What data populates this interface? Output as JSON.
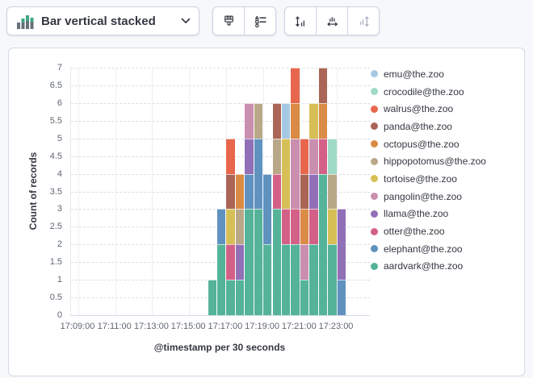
{
  "toolbar": {
    "chart_type_label": "Bar vertical stacked",
    "chart_type_icon": "bar-vertical-stacked-icon",
    "dropdown_icon": "chevron-down-icon",
    "buttons": [
      {
        "name": "styling",
        "icon": "brush-icon",
        "enabled": true
      },
      {
        "name": "legend-settings",
        "icon": "legend-settings-icon",
        "enabled": true
      },
      {
        "name": "left-axis",
        "icon": "axis-left-icon",
        "enabled": true
      },
      {
        "name": "bottom-axis",
        "icon": "axis-bottom-icon",
        "enabled": true
      },
      {
        "name": "right-axis",
        "icon": "axis-right-icon",
        "enabled": false
      }
    ],
    "icon_color": "#343741",
    "disabled_icon_color": "#a9b2c1",
    "viz_icon_green": "#3fa583",
    "viz_icon_gray": "#69707d"
  },
  "chart_data": {
    "type": "bar",
    "stacked": true,
    "orientation": "vertical",
    "xlabel": "@timestamp per 30 seconds",
    "ylabel": "Count of records",
    "ylim": [
      0,
      7
    ],
    "ytick_step": 0.5,
    "y_axis_ticks": [
      "0",
      "0.5",
      "1",
      "1.5",
      "2",
      "2.5",
      "3",
      "3.5",
      "4",
      "4.5",
      "5",
      "5.5",
      "6",
      "6.5",
      "7"
    ],
    "x_axis_ticks": [
      "17:09:00",
      "17:11:00",
      "17:13:00",
      "17:15:00",
      "17:17:00",
      "17:19:00",
      "17:21:00",
      "17:23:00"
    ],
    "x_bucket_seconds": 30,
    "x_origin": "17:09:00",
    "grid": {
      "horizontal": "dashed",
      "vertical": "solid"
    },
    "legend_position": "right",
    "legend": [
      {
        "label": "emu@the.zoo",
        "color": "#A6C9E3"
      },
      {
        "label": "crocodile@the.zoo",
        "color": "#9EDAC6"
      },
      {
        "label": "walrus@the.zoo",
        "color": "#E7664C"
      },
      {
        "label": "panda@the.zoo",
        "color": "#AA6556"
      },
      {
        "label": "octopus@the.zoo",
        "color": "#DA8B45"
      },
      {
        "label": "hippopotomus@the.zoo",
        "color": "#B9A888"
      },
      {
        "label": "tortoise@the.zoo",
        "color": "#D6BF57"
      },
      {
        "label": "pangolin@the.zoo",
        "color": "#CA8EAE"
      },
      {
        "label": "llama@the.zoo",
        "color": "#9170B8"
      },
      {
        "label": "otter@the.zoo",
        "color": "#D36086"
      },
      {
        "label": "elephant@the.zoo",
        "color": "#6092C0"
      },
      {
        "label": "aardvark@the.zoo",
        "color": "#54B399"
      }
    ],
    "bars": [
      {
        "x": "17:16:00",
        "stack": [
          [
            "aardvark@the.zoo",
            1
          ]
        ]
      },
      {
        "x": "17:16:30",
        "stack": [
          [
            "aardvark@the.zoo",
            2
          ],
          [
            "elephant@the.zoo",
            1
          ]
        ]
      },
      {
        "x": "17:17:00",
        "stack": [
          [
            "aardvark@the.zoo",
            1
          ],
          [
            "otter@the.zoo",
            1
          ],
          [
            "tortoise@the.zoo",
            1
          ],
          [
            "panda@the.zoo",
            1
          ],
          [
            "walrus@the.zoo",
            1
          ]
        ]
      },
      {
        "x": "17:17:30",
        "stack": [
          [
            "aardvark@the.zoo",
            1
          ],
          [
            "llama@the.zoo",
            1
          ],
          [
            "hippopotomus@the.zoo",
            1
          ],
          [
            "octopus@the.zoo",
            1
          ]
        ]
      },
      {
        "x": "17:18:00",
        "stack": [
          [
            "aardvark@the.zoo",
            3
          ],
          [
            "elephant@the.zoo",
            1
          ],
          [
            "llama@the.zoo",
            1
          ],
          [
            "pangolin@the.zoo",
            1
          ]
        ]
      },
      {
        "x": "17:18:30",
        "stack": [
          [
            "aardvark@the.zoo",
            3
          ],
          [
            "elephant@the.zoo",
            2
          ],
          [
            "hippopotomus@the.zoo",
            1
          ]
        ]
      },
      {
        "x": "17:19:00",
        "stack": [
          [
            "aardvark@the.zoo",
            2
          ],
          [
            "elephant@the.zoo",
            2
          ]
        ]
      },
      {
        "x": "17:19:30",
        "stack": [
          [
            "aardvark@the.zoo",
            3
          ],
          [
            "otter@the.zoo",
            1
          ],
          [
            "hippopotomus@the.zoo",
            1
          ],
          [
            "panda@the.zoo",
            1
          ]
        ]
      },
      {
        "x": "17:20:00",
        "stack": [
          [
            "aardvark@the.zoo",
            2
          ],
          [
            "otter@the.zoo",
            1
          ],
          [
            "tortoise@the.zoo",
            2
          ],
          [
            "emu@the.zoo",
            1
          ]
        ]
      },
      {
        "x": "17:20:30",
        "stack": [
          [
            "aardvark@the.zoo",
            2
          ],
          [
            "otter@the.zoo",
            1
          ],
          [
            "pangolin@the.zoo",
            2
          ],
          [
            "octopus@the.zoo",
            1
          ],
          [
            "walrus@the.zoo",
            1
          ]
        ]
      },
      {
        "x": "17:21:00",
        "stack": [
          [
            "aardvark@the.zoo",
            1
          ],
          [
            "pangolin@the.zoo",
            1
          ],
          [
            "octopus@the.zoo",
            1
          ],
          [
            "panda@the.zoo",
            1
          ],
          [
            "walrus@the.zoo",
            1
          ]
        ]
      },
      {
        "x": "17:21:30",
        "stack": [
          [
            "aardvark@the.zoo",
            2
          ],
          [
            "otter@the.zoo",
            1
          ],
          [
            "llama@the.zoo",
            1
          ],
          [
            "pangolin@the.zoo",
            1
          ],
          [
            "tortoise@the.zoo",
            1
          ]
        ]
      },
      {
        "x": "17:22:00",
        "stack": [
          [
            "aardvark@the.zoo",
            4
          ],
          [
            "otter@the.zoo",
            1
          ],
          [
            "octopus@the.zoo",
            1
          ],
          [
            "panda@the.zoo",
            1
          ]
        ]
      },
      {
        "x": "17:22:30",
        "stack": [
          [
            "aardvark@the.zoo",
            2
          ],
          [
            "tortoise@the.zoo",
            1
          ],
          [
            "hippopotomus@the.zoo",
            1
          ],
          [
            "crocodile@the.zoo",
            1
          ]
        ]
      },
      {
        "x": "17:23:00",
        "stack": [
          [
            "elephant@the.zoo",
            1
          ],
          [
            "llama@the.zoo",
            2
          ]
        ]
      }
    ]
  }
}
